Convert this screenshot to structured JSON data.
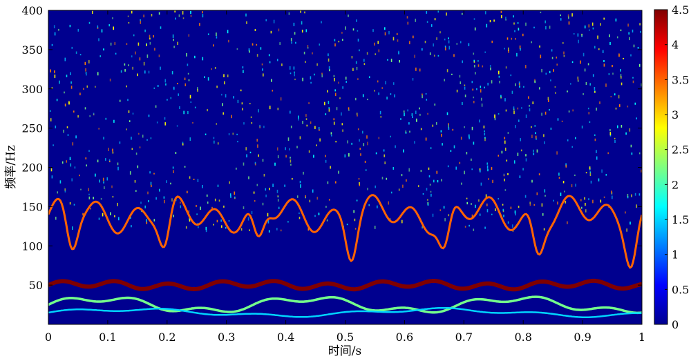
{
  "chart_data": {
    "type": "heatmap",
    "xlabel": "时间/s",
    "ylabel": "频率/Hz",
    "xlim": [
      0,
      1
    ],
    "ylim": [
      0,
      400
    ],
    "xticks": [
      0,
      0.1,
      0.2,
      0.3,
      0.4,
      0.5,
      0.6,
      0.7,
      0.8,
      0.9,
      1
    ],
    "xtick_labels": [
      "0",
      "0.1",
      "0.2",
      "0.3",
      "0.4",
      "0.5",
      "0.6",
      "0.7",
      "0.8",
      "0.9",
      "1"
    ],
    "yticks": [
      50,
      100,
      150,
      200,
      250,
      300,
      350,
      400
    ],
    "ytick_labels": [
      "50",
      "100",
      "150",
      "200",
      "250",
      "300",
      "350",
      "400"
    ],
    "colorbar": {
      "range": [
        0,
        4.5
      ],
      "ticks": [
        0,
        0.5,
        1,
        1.5,
        2,
        2.5,
        3,
        3.5,
        4,
        4.5
      ],
      "tick_labels": [
        "0",
        "0.5",
        "1",
        "1.5",
        "2",
        "2.5",
        "3",
        "3.5",
        "4",
        "4.5"
      ],
      "colormap": "jet"
    },
    "background_color": "#00008f",
    "ridges": [
      {
        "name": "",
        "approx_frequency": 50,
        "amplitude": 4.5
      },
      {
        "name": "",
        "approx_frequency": 140,
        "amplitude": 3.5
      },
      {
        "name": "",
        "approx_frequency": 25,
        "amplitude": 2.2
      },
      {
        "name": "",
        "approx_frequency": 15,
        "amplitude": 1.5
      }
    ]
  }
}
